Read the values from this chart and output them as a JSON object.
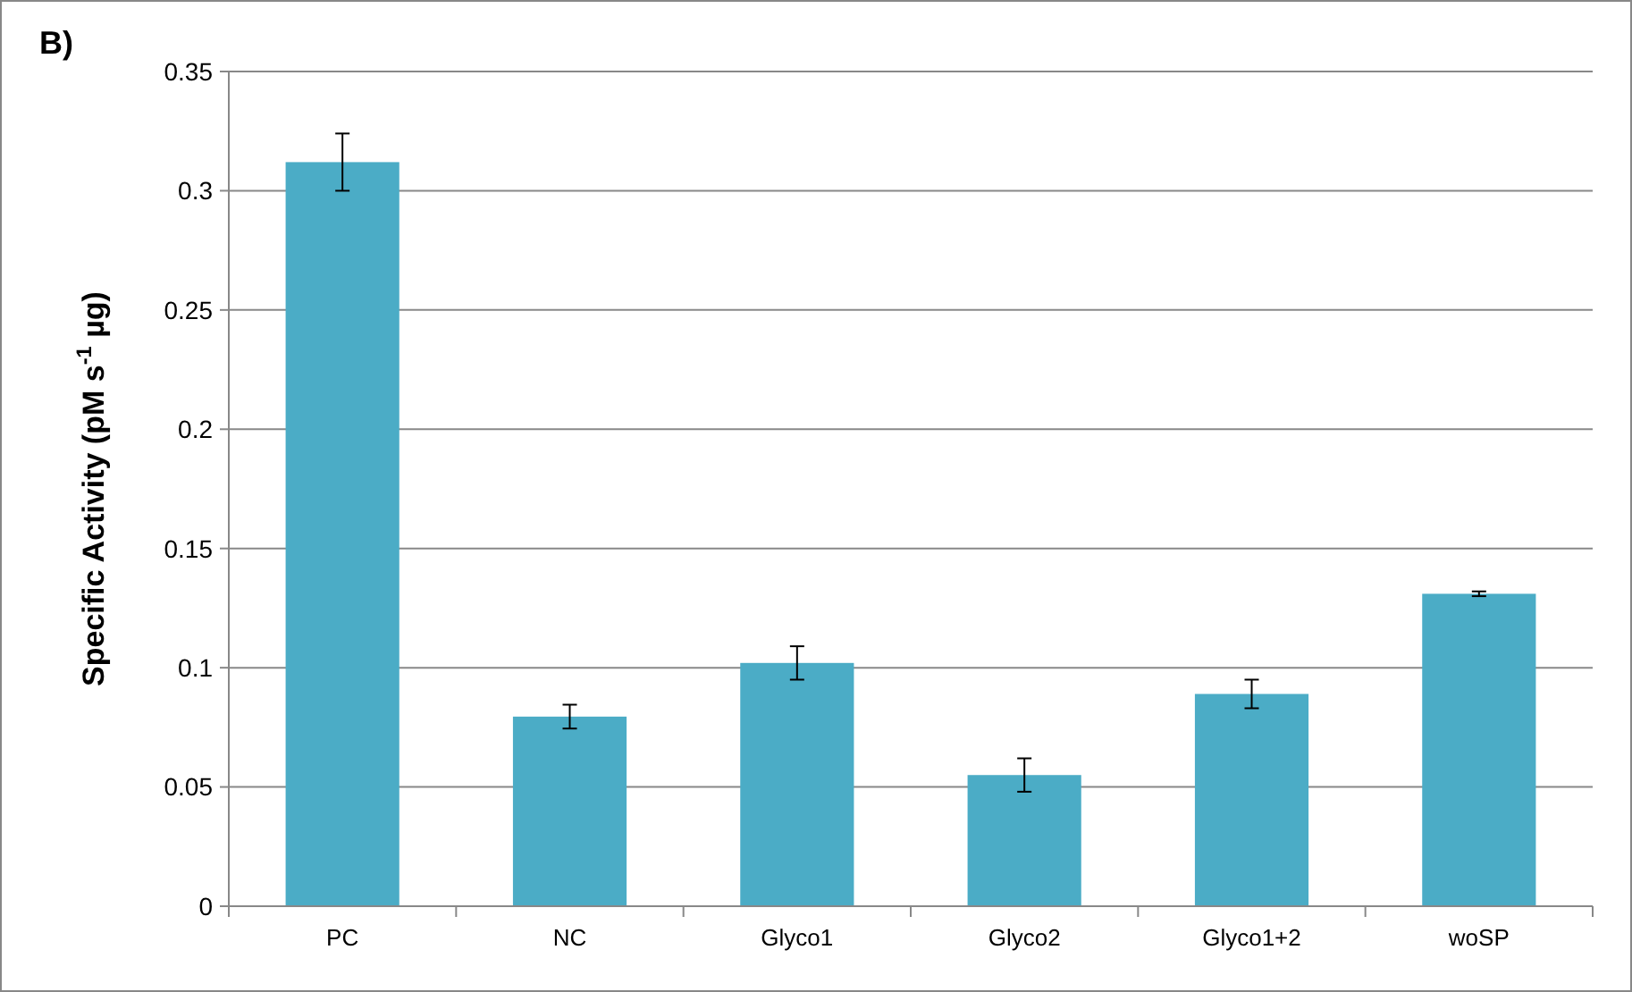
{
  "chart_data": {
    "type": "bar",
    "title": "B)",
    "ylabel": "Specific Activity (pM s$^{-1}$ µg)",
    "categories": [
      "PC",
      "NC",
      "Glyco1",
      "Glyco2",
      "Glyco1+2",
      "woSP"
    ],
    "values": [
      0.312,
      0.0795,
      0.102,
      0.055,
      0.089,
      0.131
    ],
    "errors": [
      0.012,
      0.005,
      0.007,
      0.007,
      0.006,
      0.001
    ],
    "color": "#4bacc6",
    "ylim": [
      0,
      0.35
    ],
    "yticks": [
      0,
      0.05,
      0.1,
      0.15,
      0.2,
      0.25,
      0.3,
      0.35
    ],
    "grid": "y"
  }
}
